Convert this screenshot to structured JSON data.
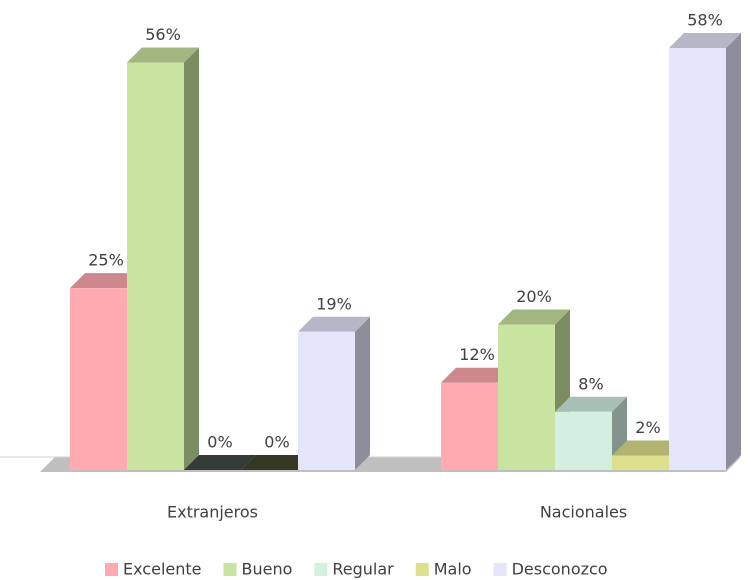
{
  "chart_data": {
    "type": "bar3d",
    "categories": [
      "Extranjeros",
      "Nacionales"
    ],
    "series": [
      {
        "name": "Excelente",
        "color": "#ffaab0",
        "values": [
          25,
          12
        ],
        "value_labels": [
          "25%",
          "12%"
        ]
      },
      {
        "name": "Bueno",
        "color": "#c9e3a0",
        "values": [
          56,
          20
        ],
        "value_labels": [
          "56%",
          "20%"
        ]
      },
      {
        "name": "Regular",
        "color": "#d2efe0",
        "values": [
          0,
          8
        ],
        "value_labels": [
          "0%",
          "8%"
        ]
      },
      {
        "name": "Malo",
        "color": "#dde08c",
        "values": [
          0,
          2
        ],
        "value_labels": [
          "0%",
          "2%"
        ]
      },
      {
        "name": "Desconozco",
        "color": "#e4e4fa",
        "values": [
          19,
          58
        ],
        "value_labels": [
          "19%",
          "58%"
        ]
      }
    ],
    "legend": "bottom"
  }
}
